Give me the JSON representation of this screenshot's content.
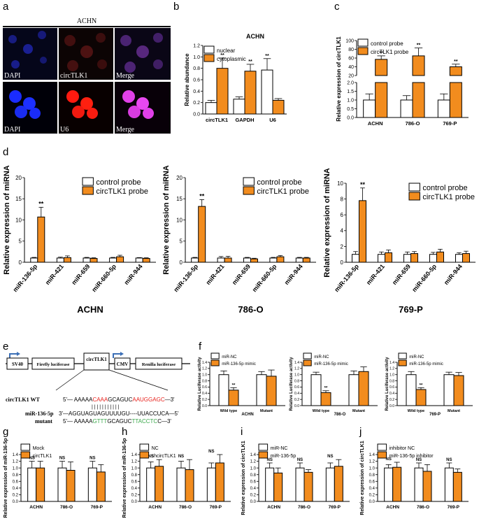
{
  "panel_letters": [
    "a",
    "b",
    "c",
    "d",
    "e",
    "f",
    "g",
    "h",
    "i",
    "j"
  ],
  "panel_a": {
    "title": "ACHN",
    "row1_labels": [
      "DAPI",
      "circTLK1",
      "Merge"
    ],
    "row2_labels": [
      "DAPI",
      "U6",
      "Merge"
    ]
  },
  "panel_e": {
    "construct": [
      "SV40",
      "Firefly luciferase",
      "circTLK1",
      "CMV",
      "Renilla luciferase"
    ],
    "wt_label": "circTLK1  WT",
    "wt_seq": [
      "5'— AAAAA",
      "CAAA",
      "GCAGUC",
      "AAUGGAGC",
      "—3'"
    ],
    "mir_label": "miR-136-5p",
    "mir_seq": "3'—AGGUAGUAGUUUUGU----UUACCUCA—5'",
    "mut_label": "mutant",
    "mut_seq": [
      "5'— AAAAA",
      "GTTT",
      "GCAGUC",
      "TTACCTC",
      "C—3'"
    ],
    "pair_marks": "| | | |     | | | | | | |"
  },
  "colors": {
    "white_bar": "#ffffff",
    "orange_bar": "#f28c1e",
    "stroke": "#000000",
    "red": "#e8231e",
    "green": "#3aa84a",
    "blue_arrow": "#3b6fb6"
  },
  "chart_data": [
    {
      "id": "b",
      "type": "bar",
      "title": "ACHN",
      "categories": [
        "circTLK1",
        "GAPDH",
        "U6"
      ],
      "series": [
        {
          "name": "nuclear",
          "values": [
            0.2,
            0.26,
            0.77
          ],
          "err": [
            0.04,
            0.04,
            0.2
          ]
        },
        {
          "name": "cytoplasmic",
          "values": [
            0.8,
            0.75,
            0.24
          ],
          "err": [
            0.18,
            0.12,
            0.03
          ]
        }
      ],
      "sig": [
        [
          "",
          "**"
        ],
        [
          "",
          "**"
        ],
        [
          "**",
          ""
        ]
      ],
      "ylabel": "Relative abundance",
      "ylim": [
        0,
        1.2
      ],
      "yticks": [
        "0.0",
        "0.2",
        "0.4",
        "0.6",
        "0.8",
        "1.0",
        "1.2"
      ],
      "legend": "top-left"
    },
    {
      "id": "c",
      "type": "bar",
      "broken_axis": true,
      "categories": [
        "ACHN",
        "786-O",
        "769-P"
      ],
      "series": [
        {
          "name": "control probe",
          "values": [
            1.0,
            1.0,
            1.0
          ],
          "err": [
            0.35,
            0.25,
            0.35
          ]
        },
        {
          "name": "circTLK1 probe",
          "values": [
            57,
            65,
            40
          ],
          "err": [
            8,
            18,
            6
          ]
        }
      ],
      "sig": [
        [
          "",
          "**"
        ],
        [
          "",
          "**"
        ],
        [
          "",
          "**"
        ]
      ],
      "ylabel": "Relative expression of circTLK1",
      "yticks_low": [
        "0.0",
        "0.5",
        "1.0",
        "1.5",
        "2.0"
      ],
      "yticks_high": [
        "20",
        "40",
        "60",
        "80",
        "100"
      ],
      "legend": "top-left"
    },
    {
      "id": "d1",
      "type": "bar",
      "xlabel": "ACHN",
      "categories": [
        "miR-136-5p",
        "miR-421",
        "miR-659",
        "miR-660-5p",
        "miR-944"
      ],
      "series": [
        {
          "name": "control probe",
          "values": [
            1.0,
            1.0,
            1.0,
            1.0,
            1.0
          ],
          "err": [
            0.15,
            0.2,
            0.15,
            0.15,
            0.1
          ]
        },
        {
          "name": "circTLK1 probe",
          "values": [
            10.7,
            1.1,
            0.9,
            1.3,
            0.9
          ],
          "err": [
            2.3,
            0.4,
            0.15,
            0.35,
            0.15
          ]
        }
      ],
      "sig": [
        [
          "",
          "**"
        ],
        [
          "",
          ""
        ],
        [
          "",
          ""
        ],
        [
          "",
          ""
        ],
        [
          "",
          ""
        ]
      ],
      "ylabel": "Relative expression of miRNA",
      "ylim": [
        0,
        20
      ],
      "yticks": [
        "0",
        "5",
        "10",
        "15",
        "20"
      ],
      "legend": "top-right"
    },
    {
      "id": "d2",
      "type": "bar",
      "xlabel": "786-O",
      "categories": [
        "miR-136-5p",
        "miR-421",
        "miR-659",
        "miR-660-5p",
        "miR-944"
      ],
      "series": [
        {
          "name": "control probe",
          "values": [
            1.0,
            1.0,
            1.0,
            1.0,
            1.0
          ],
          "err": [
            0.15,
            0.35,
            0.15,
            0.15,
            0.15
          ]
        },
        {
          "name": "circTLK1 probe",
          "values": [
            13.2,
            1.0,
            0.8,
            1.3,
            1.0
          ],
          "err": [
            1.6,
            0.4,
            0.15,
            0.3,
            0.15
          ]
        }
      ],
      "sig": [
        [
          "",
          "**"
        ],
        [
          "",
          ""
        ],
        [
          "",
          ""
        ],
        [
          "",
          ""
        ],
        [
          "",
          ""
        ]
      ],
      "ylabel": "Relative expression of miRNA",
      "ylim": [
        0,
        20
      ],
      "yticks": [
        "0",
        "5",
        "10",
        "15",
        "20"
      ],
      "legend": "top-right"
    },
    {
      "id": "d3",
      "type": "bar",
      "xlabel": "769-P",
      "categories": [
        "miR-136-5p",
        "miR-421",
        "miR-659",
        "miR-660-5p",
        "miR-944"
      ],
      "series": [
        {
          "name": "control probe",
          "values": [
            1.0,
            1.0,
            1.0,
            1.0,
            1.0
          ],
          "err": [
            0.35,
            0.3,
            0.3,
            0.25,
            0.2
          ]
        },
        {
          "name": "circTLK1 probe",
          "values": [
            7.8,
            1.2,
            1.1,
            1.3,
            1.1
          ],
          "err": [
            1.6,
            0.35,
            0.25,
            0.35,
            0.3
          ]
        }
      ],
      "sig": [
        [
          "",
          "**"
        ],
        [
          "",
          ""
        ],
        [
          "",
          ""
        ],
        [
          "",
          ""
        ],
        [
          "",
          ""
        ]
      ],
      "ylabel": "Relative expression of miRNA",
      "ylim": [
        0,
        10
      ],
      "yticks": [
        "0",
        "2",
        "4",
        "6",
        "8",
        "10"
      ],
      "legend": "top-right"
    },
    {
      "id": "f1",
      "type": "bar",
      "xlabel": "ACHN",
      "categories": [
        "Wild type",
        "Mutant"
      ],
      "series": [
        {
          "name": "miR-NC",
          "values": [
            1.0,
            1.0
          ],
          "err": [
            0.12,
            0.1
          ]
        },
        {
          "name": "miR-136-5p mimic",
          "values": [
            0.5,
            0.95
          ],
          "err": [
            0.08,
            0.2
          ]
        }
      ],
      "sig": [
        [
          "",
          "**"
        ],
        [
          "",
          ""
        ]
      ],
      "ylabel": "Relative Luciferase activity",
      "ylim": [
        0,
        1.4
      ],
      "yticks": [
        "0.0",
        "0.2",
        "0.4",
        "0.6",
        "0.8",
        "1.0",
        "1.2",
        "1.4"
      ],
      "legend": "top-left"
    },
    {
      "id": "f2",
      "type": "bar",
      "xlabel": "786-O",
      "categories": [
        "Wild type",
        "Mutant"
      ],
      "series": [
        {
          "name": "miR-NC",
          "values": [
            1.0,
            1.0
          ],
          "err": [
            0.08,
            0.12
          ]
        },
        {
          "name": "miR-136-5p mimic",
          "values": [
            0.42,
            1.1
          ],
          "err": [
            0.06,
            0.15
          ]
        }
      ],
      "sig": [
        [
          "",
          "**"
        ],
        [
          "",
          ""
        ]
      ],
      "ylabel": "Relative Luciferase activity",
      "ylim": [
        0,
        1.4
      ],
      "yticks": [
        "0.0",
        "0.2",
        "0.4",
        "0.6",
        "0.8",
        "1.0",
        "1.2",
        "1.4"
      ],
      "legend": "top-left"
    },
    {
      "id": "f3",
      "type": "bar",
      "xlabel": "769-P",
      "categories": [
        "Wild type",
        "Mutant"
      ],
      "series": [
        {
          "name": "miR-NC",
          "values": [
            1.0,
            1.0
          ],
          "err": [
            0.1,
            0.08
          ]
        },
        {
          "name": "miR-136-5p mimic",
          "values": [
            0.52,
            0.97
          ],
          "err": [
            0.06,
            0.1
          ]
        }
      ],
      "sig": [
        [
          "",
          "**"
        ],
        [
          "",
          ""
        ]
      ],
      "ylabel": "Relative Luciferase activity",
      "ylim": [
        0,
        1.4
      ],
      "yticks": [
        "0.0",
        "0.2",
        "0.4",
        "0.6",
        "0.8",
        "1.0",
        "1.2",
        "1.4"
      ],
      "legend": "top-left"
    },
    {
      "id": "g",
      "type": "bar",
      "categories": [
        "ACHN",
        "786-O",
        "769-P"
      ],
      "series": [
        {
          "name": "Mock",
          "values": [
            1.0,
            1.0,
            1.0
          ],
          "err": [
            0.2,
            0.2,
            0.2
          ]
        },
        {
          "name": "circTLK1",
          "values": [
            1.0,
            0.93,
            0.88
          ],
          "err": [
            0.2,
            0.25,
            0.22
          ]
        }
      ],
      "sig_group": [
        "NS",
        "NS",
        "NS"
      ],
      "ylabel": "Relative expression of miR-136-5p",
      "ylim": [
        0,
        1.4
      ],
      "yticks": [
        "0.0",
        "0.2",
        "0.4",
        "0.6",
        "0.8",
        "1.0",
        "1.2",
        "1.4"
      ],
      "legend": "top-left"
    },
    {
      "id": "h",
      "type": "bar",
      "categories": [
        "ACHN",
        "786-O",
        "769-P"
      ],
      "series": [
        {
          "name": "NC",
          "values": [
            1.0,
            1.0,
            1.0
          ],
          "err": [
            0.18,
            0.2,
            0.15
          ]
        },
        {
          "name": "shcircTLK1",
          "values": [
            1.05,
            0.95,
            1.15
          ],
          "err": [
            0.2,
            0.3,
            0.25
          ]
        }
      ],
      "sig_group": [
        "NS",
        "NS",
        "NS"
      ],
      "ylabel": "Relative expression of miR-136-5p",
      "ylim": [
        0,
        1.4
      ],
      "yticks": [
        "0.0",
        "0.2",
        "0.4",
        "0.6",
        "0.8",
        "1.0",
        "1.2",
        "1.4"
      ],
      "legend": "top-left"
    },
    {
      "id": "i",
      "type": "bar",
      "categories": [
        "ACHN",
        "786-O",
        "769-P"
      ],
      "series": [
        {
          "name": "miR-NC",
          "values": [
            1.0,
            1.0,
            1.0
          ],
          "err": [
            0.15,
            0.15,
            0.15
          ]
        },
        {
          "name": "miR-136-5p",
          "values": [
            0.85,
            0.87,
            1.05
          ],
          "err": [
            0.15,
            0.08,
            0.2
          ]
        }
      ],
      "sig_group": [
        "NS",
        "NS",
        "NS"
      ],
      "ylabel": "Relative expression of circTLK1",
      "ylim": [
        0,
        1.4
      ],
      "yticks": [
        "0.0",
        "0.2",
        "0.4",
        "0.6",
        "0.8",
        "1.0",
        "1.2",
        "1.4"
      ],
      "legend": "top-left"
    },
    {
      "id": "j",
      "type": "bar",
      "categories": [
        "ACHN",
        "786-O",
        "769-P"
      ],
      "series": [
        {
          "name": "inhibitor NC",
          "values": [
            1.0,
            1.0,
            1.0
          ],
          "err": [
            0.1,
            0.15,
            0.15
          ]
        },
        {
          "name": "miR-136-5p inhibitor",
          "values": [
            1.02,
            0.9,
            0.87
          ],
          "err": [
            0.15,
            0.2,
            0.1
          ]
        }
      ],
      "sig_group": [
        "NS",
        "NS",
        "NS"
      ],
      "ylabel": "Relative expression of circTLK1",
      "ylim": [
        0,
        1.4
      ],
      "yticks": [
        "0.0",
        "0.2",
        "0.4",
        "0.6",
        "0.8",
        "1.0",
        "1.2",
        "1.4"
      ],
      "legend": "top-left"
    }
  ]
}
